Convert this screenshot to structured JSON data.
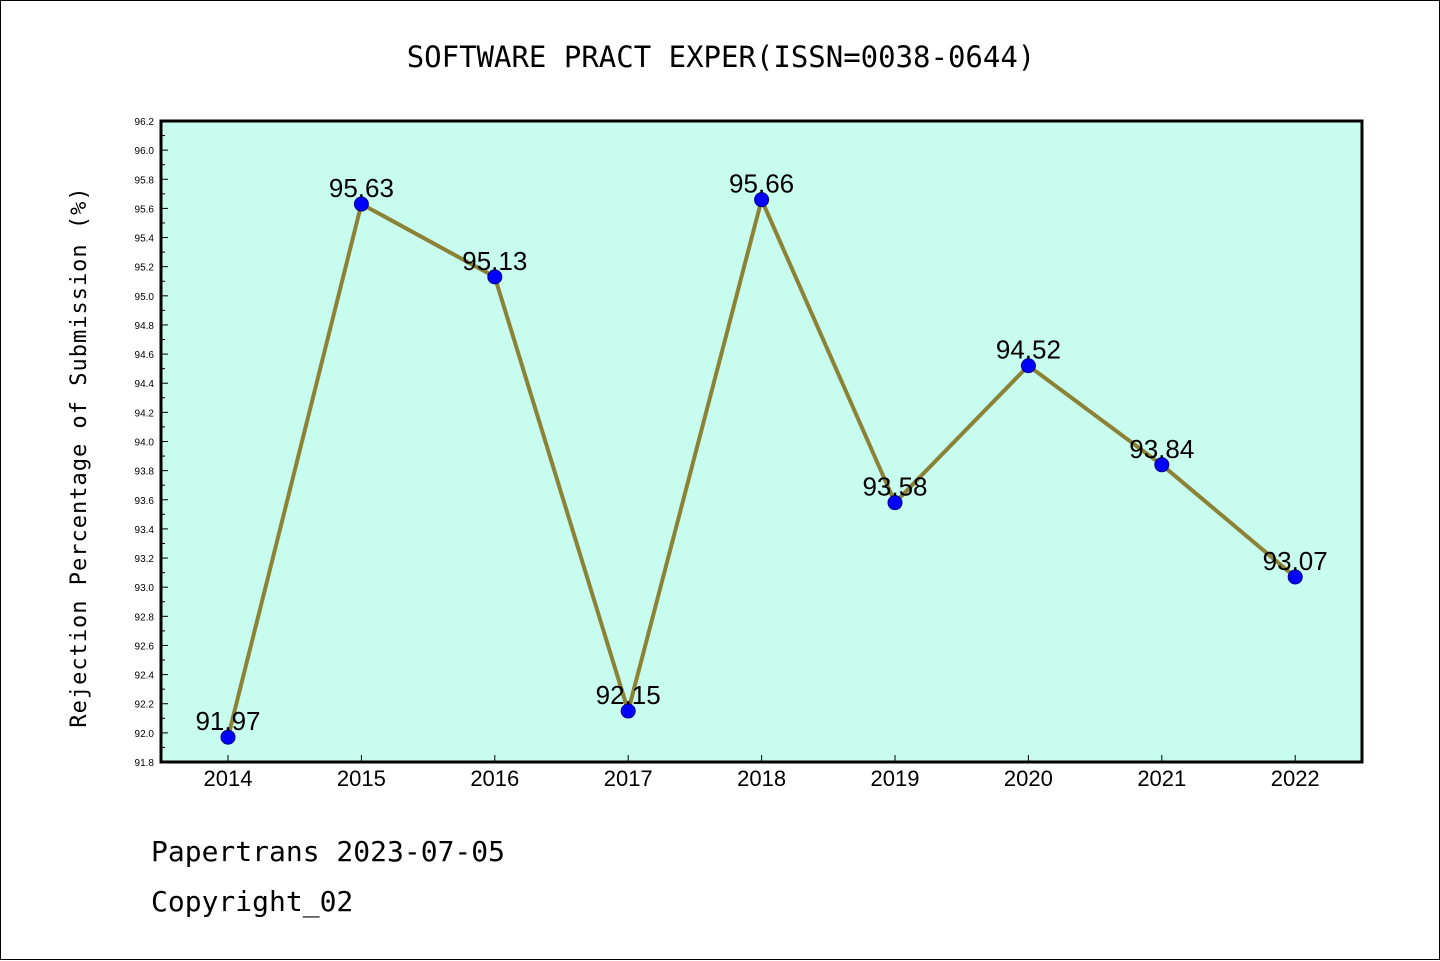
{
  "colors": {
    "plot_bg": "#c8fcee",
    "line": "#8b8235",
    "marker": "#0000ff",
    "axis": "#000000"
  },
  "chart_data": {
    "type": "line",
    "title": "SOFTWARE PRACT EXPER(ISSN=0038-0644)",
    "xlabel": "",
    "ylabel": "Rejection Percentage of Submission (%)",
    "categories": [
      "2014",
      "2015",
      "2016",
      "2017",
      "2018",
      "2019",
      "2020",
      "2021",
      "2022"
    ],
    "series": [
      {
        "values": [
          91.97,
          95.63,
          95.13,
          92.15,
          95.66,
          93.58,
          94.52,
          93.84,
          93.07
        ],
        "labels": [
          "91.97",
          "95.63",
          "95.13",
          "92.15",
          "95.66",
          "93.58",
          "94.52",
          "93.84",
          "93.07"
        ]
      }
    ],
    "ylim": [
      91.8,
      96.2
    ],
    "ytick_step": 0.2,
    "yticks": [
      "91.8",
      "92.0",
      "92.2",
      "92.4",
      "92.6",
      "92.8",
      "93.0",
      "93.2",
      "93.4",
      "93.6",
      "93.8",
      "94.0",
      "94.2",
      "94.4",
      "94.6",
      "94.8",
      "95.0",
      "95.2",
      "95.4",
      "95.6",
      "95.8",
      "96.0",
      "96.2"
    ],
    "grid": false,
    "legend": "none"
  },
  "footer": {
    "line1": "Papertrans 2023-07-05",
    "line2": "Copyright_02"
  }
}
